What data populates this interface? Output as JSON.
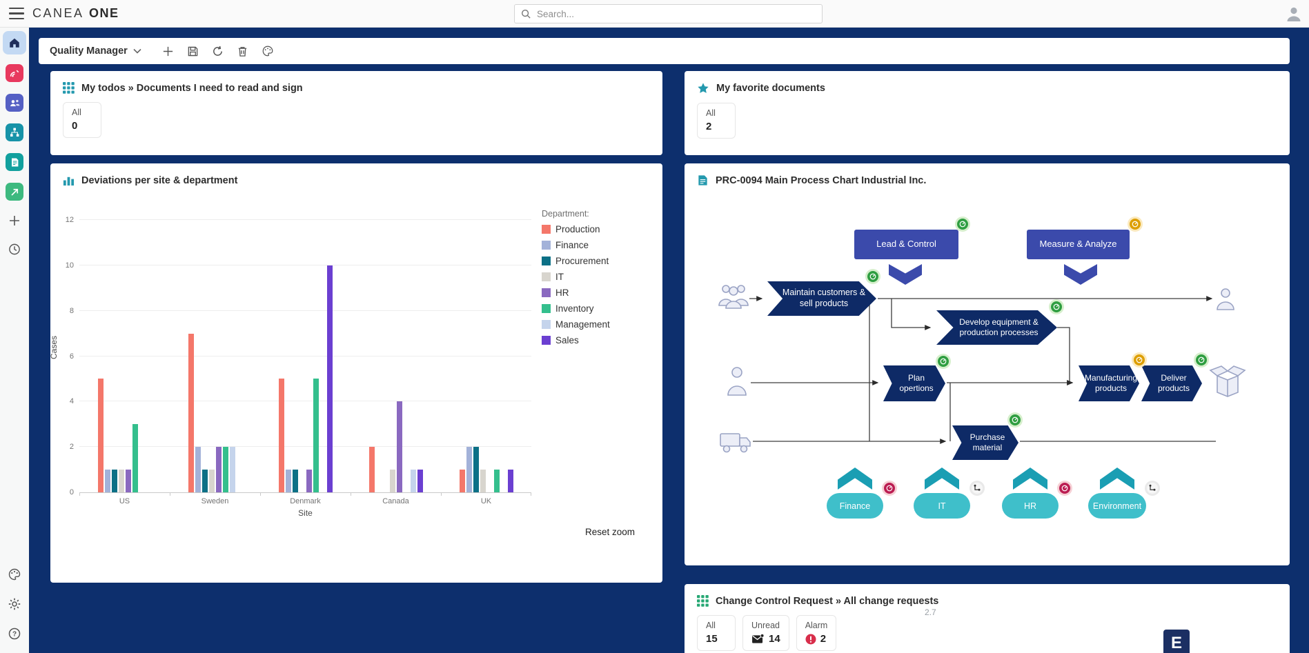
{
  "topbar": {
    "logo_primary": "CANEA",
    "logo_secondary": "ONE",
    "search_placeholder": "Search..."
  },
  "toolbar": {
    "dashboard_name": "Quality Manager"
  },
  "sidebar": {
    "items": [
      "home",
      "monitoring",
      "people",
      "process",
      "documents",
      "export",
      "add",
      "history"
    ],
    "bottom_items": [
      "theme",
      "settings",
      "help"
    ]
  },
  "widgets": {
    "todos": {
      "title": "My todos » Documents I need to read and sign",
      "cards": [
        {
          "label": "All",
          "value": "0"
        }
      ]
    },
    "favorites": {
      "title": "My favorite documents",
      "cards": [
        {
          "label": "All",
          "value": "2"
        }
      ]
    },
    "deviations": {
      "title": "Deviations per site & department",
      "reset_zoom": "Reset zoom"
    },
    "process": {
      "title": "PRC-0094 Main Process Chart Industrial Inc.",
      "nodes": {
        "lead": "Lead & Control",
        "measure": "Measure & Analyze",
        "maintain": "Maintain customers & sell products",
        "develop": "Develop equipment & production processes",
        "plan": "Plan opertions",
        "manufacturing": "Manufacturing products",
        "deliver": "Deliver products",
        "purchase": "Purchase material"
      },
      "pills": [
        "Finance",
        "IT",
        "HR",
        "Environment"
      ]
    },
    "change": {
      "title": "Change Control Request » All change requests",
      "cards": [
        {
          "label": "All",
          "value": "15"
        },
        {
          "label": "Unread",
          "value": "14"
        },
        {
          "label": "Alarm",
          "value": "2"
        }
      ]
    }
  },
  "chart_data": {
    "type": "bar",
    "title": "Deviations per site & department",
    "categories": [
      "US",
      "Sweden",
      "Denmark",
      "Canada",
      "UK"
    ],
    "series": [
      {
        "name": "Production",
        "color": "#f4776a",
        "values": [
          5,
          7,
          5,
          2,
          1
        ]
      },
      {
        "name": "Finance",
        "color": "#a3b2d9",
        "values": [
          1,
          2,
          1,
          0,
          2
        ]
      },
      {
        "name": "Procurement",
        "color": "#0c7086",
        "values": [
          1,
          1,
          1,
          0,
          2
        ]
      },
      {
        "name": "IT",
        "color": "#d8d5ce",
        "values": [
          1,
          1,
          0,
          1,
          1
        ]
      },
      {
        "name": "HR",
        "color": "#8a69c0",
        "values": [
          1,
          2,
          1,
          4,
          0
        ]
      },
      {
        "name": "Inventory",
        "color": "#34bf8d",
        "values": [
          3,
          2,
          5,
          0,
          1
        ]
      },
      {
        "name": "Management",
        "color": "#c5d4ec",
        "values": [
          0,
          2,
          0,
          1,
          0
        ]
      },
      {
        "name": "Sales",
        "color": "#6b3fd1",
        "values": [
          0,
          0,
          10,
          1,
          1
        ]
      }
    ],
    "xlabel": "Site",
    "ylabel": "Cases",
    "ylim": [
      0,
      12
    ],
    "ytick_step": 2,
    "legend_title": "Department:",
    "legend_position": "right",
    "grid": true
  },
  "footer": {
    "version": "2.7",
    "badge": "E"
  }
}
